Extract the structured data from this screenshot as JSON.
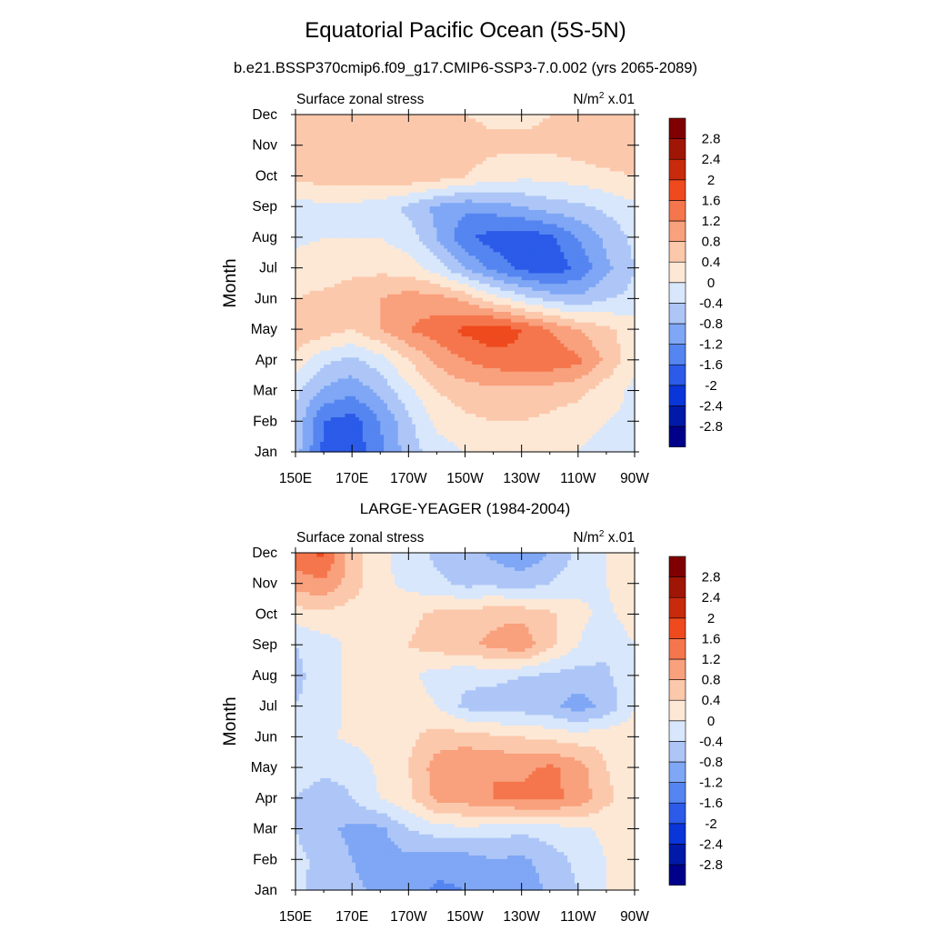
{
  "title": "Equatorial Pacific Ocean (5S-5N)",
  "subtitle": "b.e21.BSSP370cmip6.f09_g17.CMIP6-SSP3-7.0.002 (yrs 2065-2089)",
  "colorbar": {
    "levels": [
      -2.8,
      -2.4,
      -2,
      -1.6,
      -1.2,
      -0.8,
      -0.4,
      0,
      0.4,
      0.8,
      1.2,
      1.6,
      2,
      2.4,
      2.8
    ],
    "labels": [
      "-2.8",
      "-2.4",
      "-2",
      "-1.6",
      "-1.2",
      "-0.8",
      "-0.4",
      "0",
      "0.4",
      "0.8",
      "1.2",
      "1.6",
      "2",
      "2.4",
      "2.8"
    ],
    "colors": [
      "#00008a",
      "#0019a8",
      "#0a35d8",
      "#2b5be8",
      "#5585f0",
      "#7fa7f5",
      "#adc6f7",
      "#d8e7fb",
      "#fde8d6",
      "#fcc8ac",
      "#f9a07d",
      "#f5764d",
      "#ee4a1e",
      "#c82a0c",
      "#a01606",
      "#7f0000"
    ]
  },
  "chart_data": [
    {
      "type": "heatmap",
      "title": "",
      "left_string": "Surface zonal stress",
      "right_string": "N/m² x.01",
      "ylabel": "Month",
      "xlabel": "",
      "x_tick_labels": [
        "150E",
        "170E",
        "170W",
        "150W",
        "130W",
        "110W",
        "90W"
      ],
      "y_tick_labels": [
        "Jan",
        "Feb",
        "Mar",
        "Apr",
        "May",
        "Jun",
        "Jul",
        "Aug",
        "Sep",
        "Oct",
        "Nov",
        "Dec"
      ],
      "x": [
        "150E",
        "160E",
        "170E",
        "180",
        "170W",
        "160W",
        "150W",
        "140W",
        "130W",
        "120W",
        "110W",
        "100W",
        "90W"
      ],
      "y": [
        "Jan",
        "Feb",
        "Mar",
        "Apr",
        "May",
        "Jun",
        "Jul",
        "Aug",
        "Sep",
        "Oct",
        "Nov",
        "Dec"
      ],
      "z": [
        [
          -0.6,
          -1.7,
          -1.9,
          -1.3,
          -0.6,
          -0.2,
          0.0,
          0.1,
          0.1,
          0.1,
          0.0,
          -0.2,
          -0.2
        ],
        [
          -0.5,
          -1.6,
          -1.8,
          -1.2,
          -0.5,
          0.1,
          0.3,
          0.4,
          0.4,
          0.3,
          0.2,
          0.0,
          -0.1
        ],
        [
          -0.3,
          -0.9,
          -1.1,
          -0.7,
          -0.1,
          0.4,
          0.6,
          0.7,
          0.7,
          0.6,
          0.5,
          0.2,
          -0.1
        ],
        [
          0.2,
          -0.3,
          -0.5,
          -0.2,
          0.4,
          0.9,
          1.2,
          1.4,
          1.5,
          1.5,
          1.3,
          0.7,
          0.1
        ],
        [
          0.8,
          0.6,
          0.4,
          0.8,
          1.2,
          1.4,
          1.7,
          1.9,
          1.6,
          1.2,
          0.8,
          0.5,
          0.2
        ],
        [
          0.4,
          0.5,
          0.6,
          0.8,
          1.0,
          1.0,
          0.7,
          0.2,
          -0.2,
          -0.5,
          -0.7,
          -0.4,
          -0.3
        ],
        [
          0.2,
          0.2,
          0.3,
          0.3,
          0.2,
          -0.2,
          -0.8,
          -1.3,
          -1.7,
          -1.9,
          -1.5,
          -0.9,
          -0.4
        ],
        [
          -0.1,
          0.0,
          0.0,
          0.0,
          -0.2,
          -0.8,
          -1.5,
          -1.8,
          -1.9,
          -1.7,
          -1.2,
          -0.7,
          -0.3
        ],
        [
          -0.2,
          -0.1,
          -0.1,
          -0.2,
          -0.5,
          -0.9,
          -1.1,
          -1.0,
          -0.8,
          -0.6,
          -0.5,
          -0.3,
          -0.1
        ],
        [
          0.5,
          0.6,
          0.6,
          0.6,
          0.7,
          0.6,
          0.4,
          0.2,
          0.1,
          0.1,
          0.2,
          0.3,
          0.4
        ],
        [
          0.5,
          0.6,
          0.6,
          0.6,
          0.7,
          0.7,
          0.6,
          0.5,
          0.5,
          0.5,
          0.6,
          0.7,
          0.7
        ],
        [
          0.5,
          0.6,
          0.6,
          0.5,
          0.5,
          0.5,
          0.4,
          0.3,
          0.3,
          0.4,
          0.5,
          0.6,
          0.6
        ]
      ]
    },
    {
      "type": "heatmap",
      "title": "LARGE-YEAGER (1984-2004)",
      "left_string": "Surface zonal stress",
      "right_string": "N/m² x.01",
      "ylabel": "Month",
      "xlabel": "",
      "x_tick_labels": [
        "150E",
        "170E",
        "170W",
        "150W",
        "130W",
        "110W",
        "90W"
      ],
      "y_tick_labels": [
        "Jan",
        "Feb",
        "Mar",
        "Apr",
        "May",
        "Jun",
        "Jul",
        "Aug",
        "Sep",
        "Oct",
        "Nov",
        "Dec"
      ],
      "x": [
        "150E",
        "160E",
        "170E",
        "180",
        "170W",
        "160W",
        "150W",
        "140W",
        "130W",
        "120W",
        "110W",
        "100W",
        "90W"
      ],
      "y": [
        "Jan",
        "Feb",
        "Mar",
        "Apr",
        "May",
        "Jun",
        "Jul",
        "Aug",
        "Sep",
        "Oct",
        "Nov",
        "Dec"
      ],
      "z": [
        [
          -0.3,
          -0.6,
          -0.7,
          -0.9,
          -1.0,
          -1.3,
          -1.2,
          -0.9,
          -1.1,
          -0.7,
          -0.4,
          0.0,
          0.2
        ],
        [
          -0.3,
          -0.5,
          -0.8,
          -1.0,
          -0.9,
          -1.0,
          -1.0,
          -0.8,
          -0.9,
          -0.6,
          -0.3,
          0.0,
          0.2
        ],
        [
          -0.4,
          -0.7,
          -0.9,
          -0.9,
          -0.4,
          -0.2,
          -0.1,
          -0.2,
          -0.3,
          -0.2,
          -0.1,
          0.1,
          0.2
        ],
        [
          -0.4,
          -0.6,
          -0.4,
          0.0,
          0.3,
          0.9,
          1.0,
          1.2,
          1.3,
          1.3,
          1.1,
          0.5,
          0.1
        ],
        [
          -0.2,
          -0.3,
          -0.3,
          0.1,
          0.4,
          1.0,
          1.2,
          1.2,
          1.1,
          1.3,
          1.0,
          0.4,
          0.2
        ],
        [
          -0.2,
          -0.1,
          0.1,
          0.2,
          0.3,
          0.6,
          0.6,
          0.5,
          0.4,
          0.3,
          0.2,
          0.3,
          0.2
        ],
        [
          -0.4,
          -0.2,
          0.1,
          0.3,
          0.3,
          0.0,
          -0.5,
          -0.6,
          -0.6,
          -0.7,
          -1.0,
          -0.7,
          0.0
        ],
        [
          -0.5,
          -0.2,
          0.1,
          0.3,
          0.1,
          -0.2,
          -0.3,
          -0.3,
          -0.4,
          -0.5,
          -0.6,
          -0.5,
          0.0
        ],
        [
          -0.4,
          -0.2,
          0.1,
          0.3,
          0.4,
          0.6,
          0.7,
          0.9,
          1.1,
          0.5,
          0.0,
          -0.3,
          0.0
        ],
        [
          0.2,
          0.3,
          0.2,
          0.2,
          0.3,
          0.5,
          0.6,
          0.7,
          0.7,
          0.5,
          0.1,
          -0.1,
          0.2
        ],
        [
          1.0,
          1.1,
          0.6,
          0.1,
          -0.1,
          -0.3,
          -0.5,
          -0.5,
          -0.6,
          -0.4,
          -0.1,
          0.0,
          0.3
        ],
        [
          1.4,
          1.7,
          0.6,
          0.1,
          -0.2,
          -0.5,
          -0.6,
          -0.9,
          -1.1,
          -0.8,
          -0.3,
          0.0,
          0.3
        ]
      ]
    }
  ]
}
